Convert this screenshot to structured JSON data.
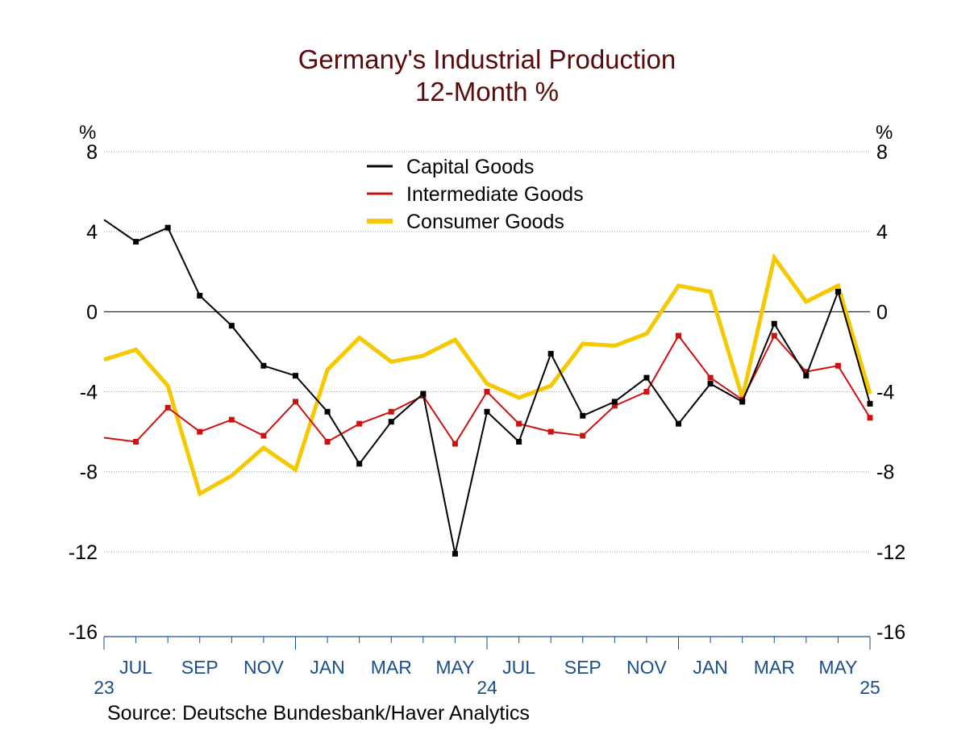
{
  "chart_data": {
    "type": "line",
    "title": "Germany's Industrial Production",
    "subtitle": "12-Month %",
    "ylabel_left": "%",
    "ylabel_right": "%",
    "ylim": [
      -16,
      8
    ],
    "yticks": [
      8,
      4,
      0,
      -4,
      -8,
      -12,
      -16
    ],
    "ytick_labels": [
      "8",
      "4",
      "0",
      "-4",
      "-8",
      "-12",
      "-16"
    ],
    "x": [
      "2023-06",
      "2023-07",
      "2023-08",
      "2023-09",
      "2023-10",
      "2023-11",
      "2023-12",
      "2024-01",
      "2024-02",
      "2024-03",
      "2024-04",
      "2024-05",
      "2024-06",
      "2024-07",
      "2024-08",
      "2024-09",
      "2024-10",
      "2024-11",
      "2024-12",
      "2025-01",
      "2025-02",
      "2025-03",
      "2025-04",
      "2025-05",
      "2025-06"
    ],
    "month_labels": [
      {
        "label": "JUL",
        "index": 1
      },
      {
        "label": "SEP",
        "index": 3
      },
      {
        "label": "NOV",
        "index": 5
      },
      {
        "label": "JAN",
        "index": 7
      },
      {
        "label": "MAR",
        "index": 9
      },
      {
        "label": "MAY",
        "index": 11
      },
      {
        "label": "JUL",
        "index": 13
      },
      {
        "label": "SEP",
        "index": 15
      },
      {
        "label": "NOV",
        "index": 17
      },
      {
        "label": "JAN",
        "index": 19
      },
      {
        "label": "MAR",
        "index": 21
      },
      {
        "label": "MAY",
        "index": 23
      }
    ],
    "year_labels": [
      {
        "label": "23",
        "index": 0
      },
      {
        "label": "24",
        "index": 12
      },
      {
        "label": "25",
        "index": 24
      }
    ],
    "series": [
      {
        "name": "Capital Goods",
        "color": "#000000",
        "marker_color": "#000000",
        "line_width": 2,
        "markers": true,
        "values": [
          4.6,
          3.5,
          4.2,
          0.8,
          -0.7,
          -2.7,
          -3.2,
          -5.0,
          -7.6,
          -5.5,
          -4.1,
          -12.1,
          -5.0,
          -6.5,
          -2.1,
          -5.2,
          -4.5,
          -3.3,
          -5.6,
          -3.6,
          -4.5,
          -0.6,
          -3.2,
          1.0,
          -4.6
        ]
      },
      {
        "name": "Intermediate Goods",
        "color": "#cc1111",
        "marker_color": "#cc1111",
        "line_width": 2,
        "markers": true,
        "values": [
          -6.3,
          -6.5,
          -4.8,
          -6.0,
          -5.4,
          -6.2,
          -4.5,
          -6.5,
          -5.6,
          -5.0,
          -4.2,
          -6.6,
          -4.0,
          -5.6,
          -6.0,
          -6.2,
          -4.7,
          -4.0,
          -1.2,
          -3.3,
          -4.4,
          -1.2,
          -3.0,
          -2.7,
          -5.3
        ]
      },
      {
        "name": "Consumer Goods",
        "color": "#f5c800",
        "marker_color": "#f5c800",
        "line_width": 5,
        "markers": false,
        "values": [
          -2.4,
          -1.9,
          -3.7,
          -9.1,
          -8.2,
          -6.8,
          -7.9,
          -2.9,
          -1.3,
          -2.5,
          -2.2,
          -1.4,
          -3.6,
          -4.3,
          -3.7,
          -1.6,
          -1.7,
          -1.1,
          1.3,
          1.0,
          -4.3,
          2.7,
          0.5,
          1.3,
          -4.1
        ]
      }
    ],
    "legend_position": "top-center",
    "grid": true
  },
  "source": "Source:  Deutsche Bundesbank/Haver Analytics"
}
